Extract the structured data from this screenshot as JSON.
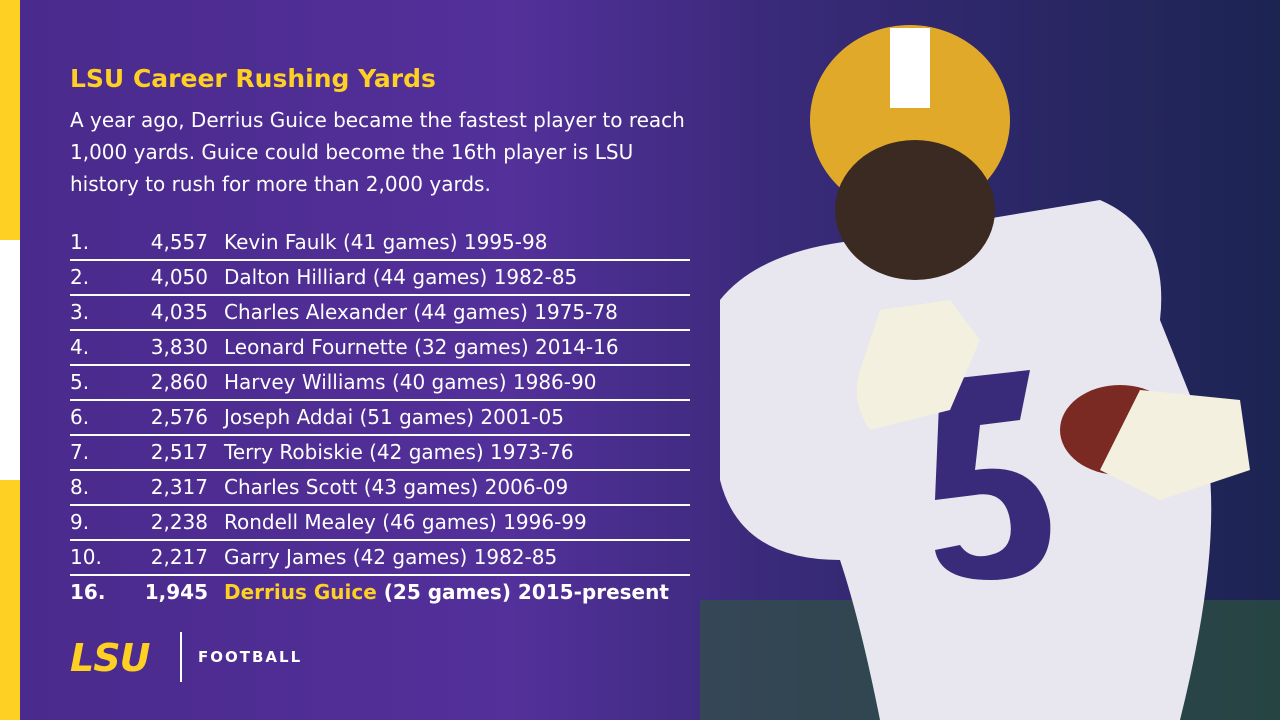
{
  "header": {
    "title": "LSU Career Rushing Yards",
    "subtitle": "A year ago, Derrius Guice became the fastest player to reach 1,000 yards. Guice could become the 16th player is LSU history to rush for more than 2,000 yards."
  },
  "table": {
    "rows": [
      [
        "1.",
        "4,557",
        "Kevin Faulk",
        "(41 games) 1995-98"
      ],
      [
        "2.",
        "4,050",
        "Dalton Hilliard",
        "(44 games) 1982-85"
      ],
      [
        "3.",
        "4,035",
        "Charles Alexander",
        "(44 games) 1975-78"
      ],
      [
        "4.",
        "3,830",
        "Leonard Fournette",
        "(32 games) 2014-16"
      ],
      [
        "5.",
        "2,860",
        "Harvey Williams",
        "(40 games) 1986-90"
      ],
      [
        "6.",
        "2,576",
        "Joseph Addai",
        "(51 games) 2001-05"
      ],
      [
        "7.",
        "2,517",
        "Terry Robiskie",
        "(42 games) 1973-76"
      ],
      [
        "8.",
        "2,317",
        "Charles Scott",
        "(43 games) 2006-09"
      ],
      [
        "9.",
        "2,238",
        "Rondell Mealey",
        "(46 games) 1996-99"
      ],
      [
        "10.",
        "2,217",
        "Garry James",
        "(42 games) 1982-85"
      ],
      [
        "16.",
        "1,945",
        "Derrius Guice",
        "(25 games) 2015-present"
      ]
    ]
  },
  "logo": {
    "wordmark": "LSU",
    "label": "FOOTBALL"
  }
}
